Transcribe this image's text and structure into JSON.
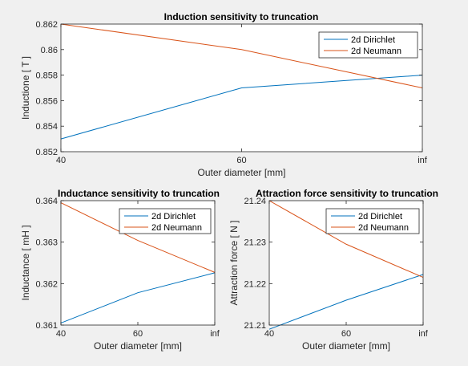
{
  "chart_data": [
    {
      "type": "line",
      "title": "Induction sensitivity to truncation",
      "xlabel": "Outer diameter [mm]",
      "ylabel": "Inductione [ T ]",
      "categories": [
        "40",
        "60",
        "inf"
      ],
      "ylim": [
        0.852,
        0.862
      ],
      "yticks": [
        "0.852",
        "0.854",
        "0.856",
        "0.858",
        "0.86",
        "0.862"
      ],
      "legend_position": "top-right",
      "grid": false,
      "series": [
        {
          "name": "2d Dirichlet",
          "color": "#0072bd",
          "values": [
            0.853,
            0.857,
            0.858
          ]
        },
        {
          "name": "2d Neumann",
          "color": "#d95319",
          "values": [
            0.862,
            0.86,
            0.857
          ]
        }
      ]
    },
    {
      "type": "line",
      "title": "Inductance sensitivity to truncation",
      "xlabel": "Outer diameter [mm]",
      "ylabel": "Inductance [ mH ]",
      "categories": [
        "40",
        "60",
        "inf"
      ],
      "ylim": [
        0.361,
        0.364
      ],
      "yticks": [
        "0.361",
        "0.362",
        "0.363",
        "0.364"
      ],
      "legend_position": "top-right",
      "grid": false,
      "series": [
        {
          "name": "2d Dirichlet",
          "color": "#0072bd",
          "values": [
            0.36105,
            0.36178,
            0.36226
          ]
        },
        {
          "name": "2d Neumann",
          "color": "#d95319",
          "values": [
            0.36395,
            0.36304,
            0.36227
          ]
        }
      ]
    },
    {
      "type": "line",
      "title": "Attraction force sensitivity to truncation",
      "xlabel": "Outer diameter [mm]",
      "ylabel": "Attraction force [ N ]",
      "categories": [
        "40",
        "60",
        "inf"
      ],
      "ylim": [
        21.21,
        21.24
      ],
      "yticks": [
        "21.21",
        "21.22",
        "21.23",
        "21.24"
      ],
      "legend_position": "top-right",
      "grid": false,
      "series": [
        {
          "name": "2d Dirichlet",
          "color": "#0072bd",
          "values": [
            21.209,
            21.216,
            21.2222
          ]
        },
        {
          "name": "2d Neumann",
          "color": "#d95319",
          "values": [
            21.24,
            21.2295,
            21.2215
          ]
        }
      ]
    }
  ]
}
